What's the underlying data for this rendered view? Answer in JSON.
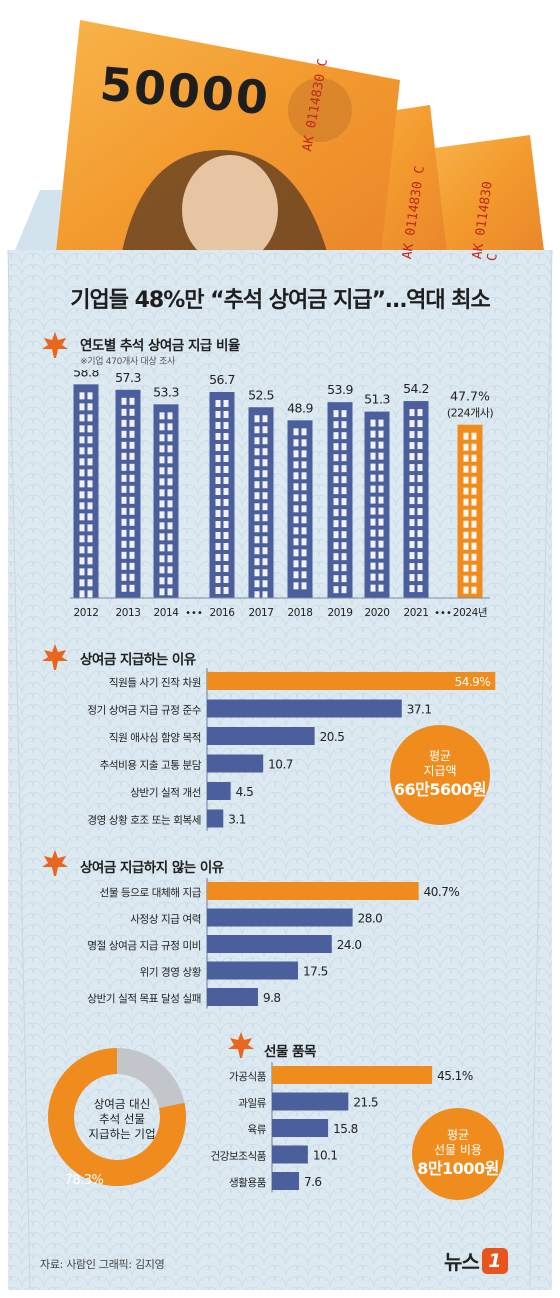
{
  "header": {
    "banknote_denomination": "50000",
    "banknote_serial": "AK 0114830 C",
    "title": "기업들 48%만 “추석 상여금 지급”…역대 최소"
  },
  "colors": {
    "background": "#dce9f1",
    "bar_blue": "#4a5f9c",
    "highlight_orange": "#f08c1e",
    "leaf_orange": "#e8661e"
  },
  "section_yearly": {
    "title": "연도별 추석 상여금 지급 비율",
    "subtitle": "※기업 470개사 대상 조사",
    "highlight_label_line2": "(224개사)"
  },
  "section_reasons": {
    "title": "상여금 지급하는 이유",
    "avg": {
      "line1": "평균",
      "line2": "지급액",
      "value": "66만5600원"
    }
  },
  "section_no_reasons": {
    "title": "상여금 지급하지 않는 이유"
  },
  "section_gifts": {
    "title": "선물 품목",
    "avg": {
      "line1": "평균",
      "line2": "선물 비용",
      "value": "8만1000원"
    }
  },
  "donut": {
    "label_lines": [
      "상여금 대신",
      "추석 선물",
      "지급하는 기업"
    ],
    "value_label": "78.3%",
    "value": 78.3
  },
  "footer": {
    "source": "자료: 사람인  그래픽: 김지영",
    "logo_text": "뉴스",
    "logo_mark": "1"
  },
  "chart_data": [
    {
      "type": "bar",
      "categories": [
        "2012",
        "2013",
        "2014",
        "2016",
        "2017",
        "2018",
        "2019",
        "2020",
        "2021",
        "2024년"
      ],
      "values": [
        58.8,
        57.3,
        53.3,
        56.7,
        52.5,
        48.9,
        53.9,
        51.3,
        54.2,
        47.7
      ],
      "value_labels": [
        "58.8",
        "57.3",
        "53.3",
        "56.7",
        "52.5",
        "48.9",
        "53.9",
        "51.3",
        "54.2",
        "47.7%"
      ],
      "gaps_after": [
        "2014",
        "2021"
      ],
      "gap_marker": "•••",
      "highlight": "2024년",
      "title": "연도별 추석 상여금 지급 비율"
    },
    {
      "type": "bar",
      "orientation": "horizontal",
      "categories": [
        "직원들 사기 진작 차원",
        "정기 상여금 지급 규정 준수",
        "직원 애사심 함양 목적",
        "추석비용 지출 고통 분담",
        "상반기 실적 개선",
        "경영 상황 호조 또는 회복세"
      ],
      "values": [
        54.9,
        37.1,
        20.5,
        10.7,
        4.5,
        3.1
      ],
      "value_labels": [
        "54.9%",
        "37.1",
        "20.5",
        "10.7",
        "4.5",
        "3.1"
      ],
      "title": "상여금 지급하는 이유"
    },
    {
      "type": "bar",
      "orientation": "horizontal",
      "categories": [
        "선물 등으로 대체해 지급",
        "사정상 지급 여력",
        "명절 상여금 지급 규정 미비",
        "위기 경영 상황",
        "상반기 실적 목표 달성 실패"
      ],
      "values": [
        40.7,
        28.0,
        24.0,
        17.5,
        9.8
      ],
      "value_labels": [
        "40.7%",
        "28.0",
        "24.0",
        "17.5",
        "9.8"
      ],
      "title": "상여금 지급하지 않는 이유"
    },
    {
      "type": "bar",
      "orientation": "horizontal",
      "categories": [
        "가공식품",
        "과일류",
        "육류",
        "건강보조식품",
        "생활용품"
      ],
      "values": [
        45.1,
        21.5,
        15.8,
        10.1,
        7.6
      ],
      "value_labels": [
        "45.1%",
        "21.5",
        "15.8",
        "10.1",
        "7.6"
      ],
      "title": "선물 품목"
    },
    {
      "type": "pie",
      "values": [
        78.3,
        21.7
      ],
      "value_labels": [
        "78.3%"
      ]
    }
  ]
}
